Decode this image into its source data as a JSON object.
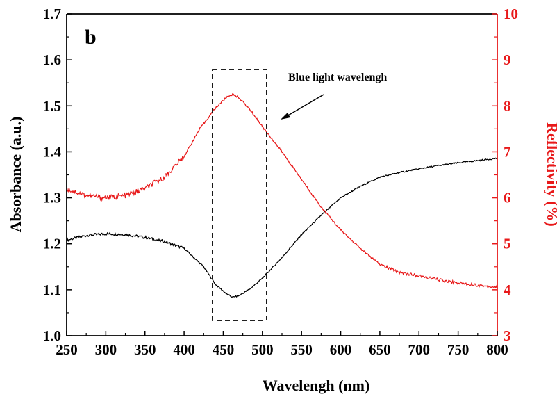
{
  "chart_data": {
    "type": "line",
    "panel_label": "b",
    "xlabel": "Wavelengh (nm)",
    "ylabel_left": "Absorbance (a.u.)",
    "ylabel_right": "Reflectivity (%)",
    "xlim": [
      250,
      800
    ],
    "ylim_left": [
      1.0,
      1.7
    ],
    "ylim_right": [
      3,
      10
    ],
    "x_ticks": [
      "250",
      "300",
      "350",
      "400",
      "450",
      "500",
      "550",
      "600",
      "650",
      "700",
      "750",
      "800"
    ],
    "y_left_ticks": [
      "1.0",
      "1.1",
      "1.2",
      "1.3",
      "1.4",
      "1.5",
      "1.6",
      "1.7"
    ],
    "y_right_ticks": [
      "3",
      "4",
      "5",
      "6",
      "7",
      "8",
      "9",
      "10"
    ],
    "grid": false,
    "colors": {
      "absorbance": "#000000",
      "reflectivity": "#e8191a",
      "axis": "#000000"
    },
    "series": [
      {
        "axis": "left",
        "color": "#000000",
        "x": [
          250,
          275,
          300,
          325,
          350,
          375,
          400,
          425,
          440,
          455,
          462,
          470,
          485,
          500,
          525,
          550,
          575,
          600,
          625,
          650,
          675,
          700,
          725,
          750,
          775,
          800
        ],
        "y": [
          1.208,
          1.218,
          1.222,
          1.22,
          1.214,
          1.205,
          1.19,
          1.15,
          1.112,
          1.09,
          1.084,
          1.087,
          1.103,
          1.125,
          1.17,
          1.22,
          1.262,
          1.3,
          1.325,
          1.345,
          1.355,
          1.363,
          1.37,
          1.376,
          1.381,
          1.386
        ]
      },
      {
        "axis": "right",
        "color": "#e8191a",
        "x": [
          250,
          275,
          300,
          325,
          350,
          375,
          400,
          420,
          440,
          455,
          462,
          470,
          485,
          500,
          525,
          550,
          575,
          600,
          625,
          650,
          675,
          700,
          725,
          750,
          775,
          800
        ],
        "y": [
          6.2,
          6.05,
          6.0,
          6.05,
          6.2,
          6.45,
          6.9,
          7.5,
          7.95,
          8.2,
          8.25,
          8.18,
          7.9,
          7.55,
          7.0,
          6.4,
          5.8,
          5.3,
          4.9,
          4.55,
          4.38,
          4.3,
          4.22,
          4.15,
          4.1,
          4.05
        ]
      }
    ],
    "annotations": [
      {
        "text": "Blue light wavelengh",
        "highlight_x_range": [
          432,
          503
        ],
        "highlight_y_range_left": [
          1.033,
          1.587
        ]
      }
    ]
  }
}
